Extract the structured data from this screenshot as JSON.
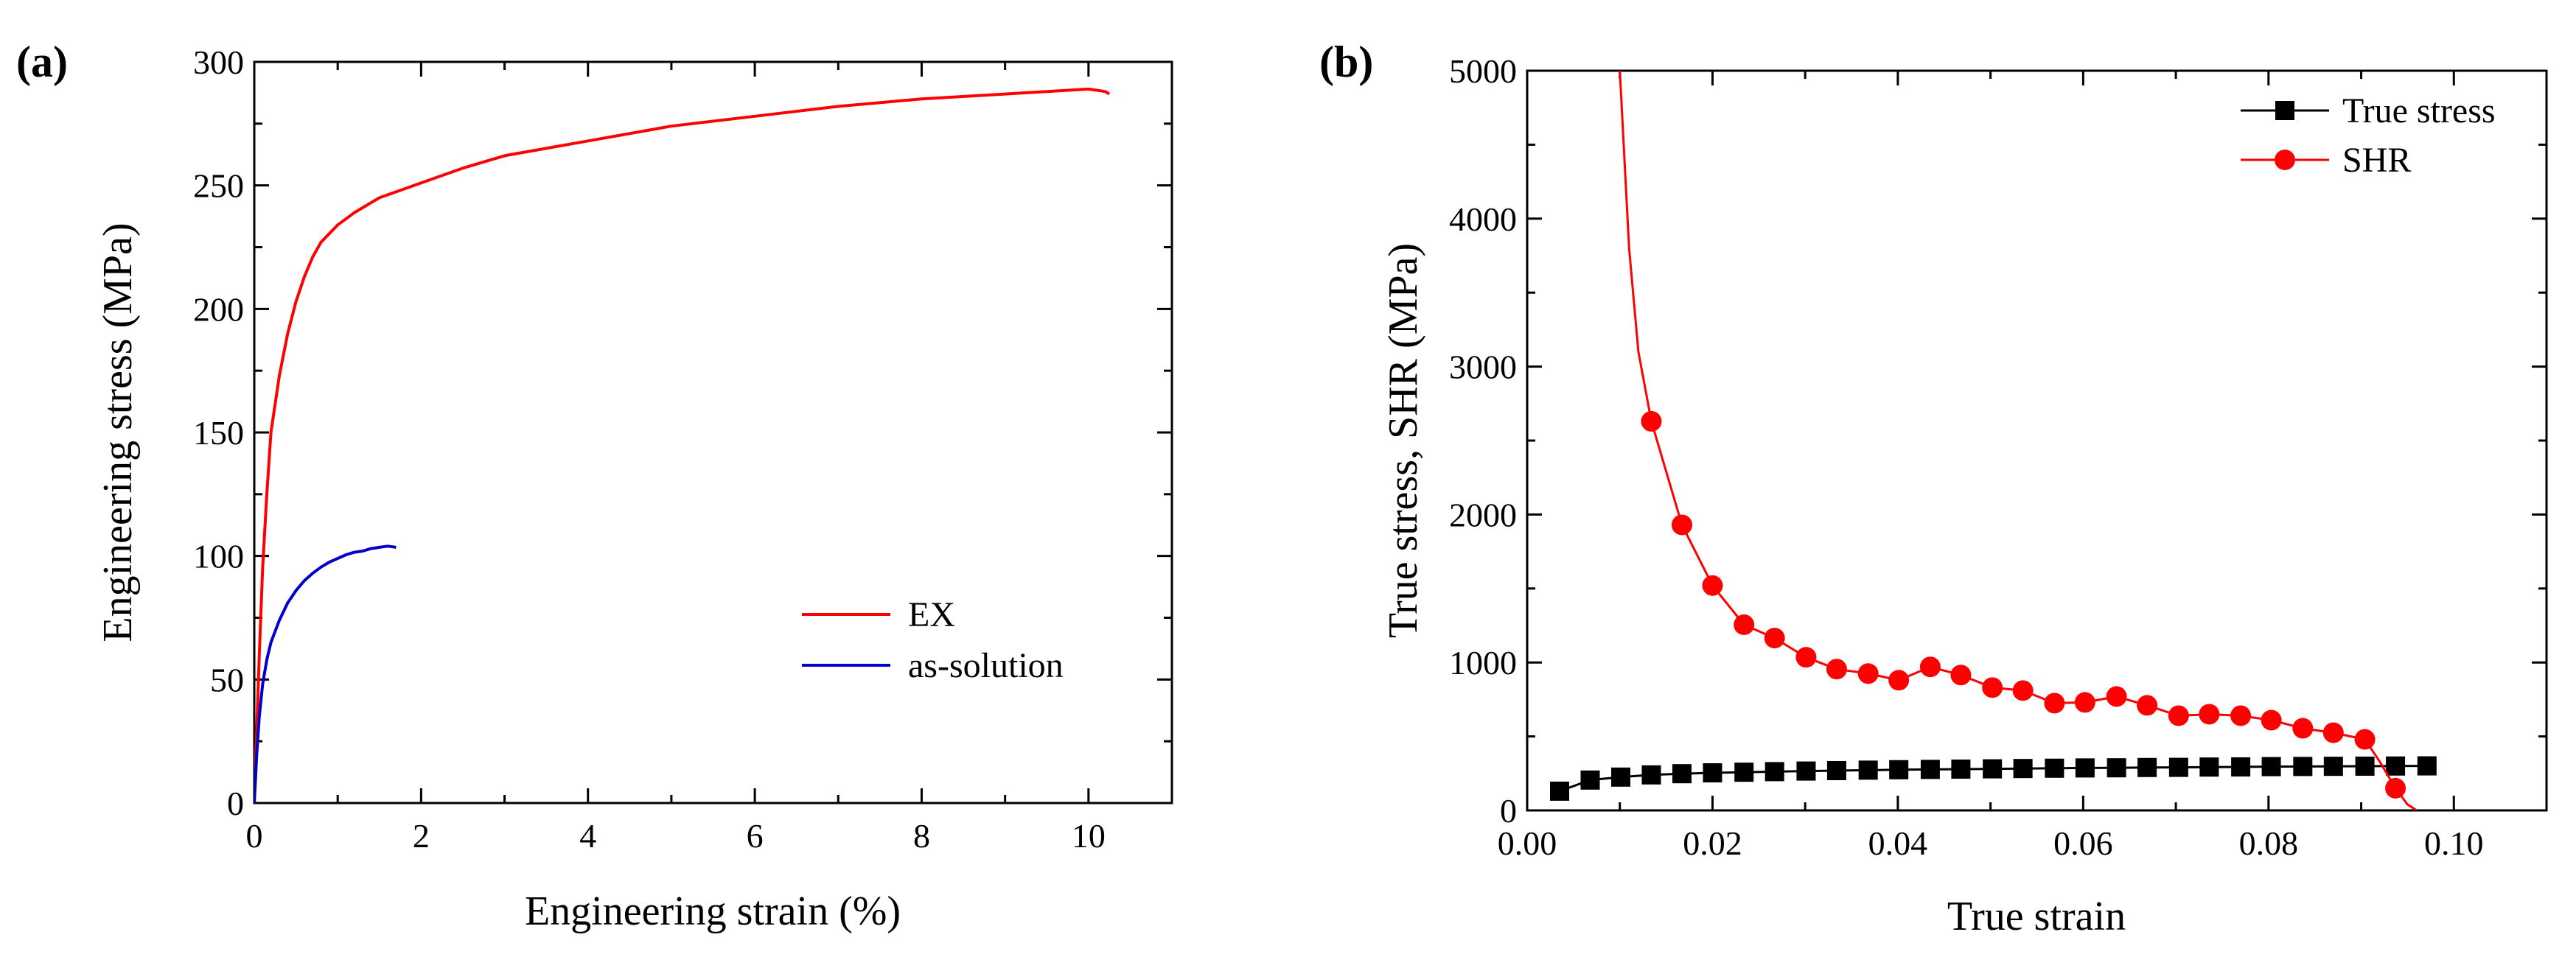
{
  "chart_data": [
    {
      "type": "line",
      "panel_label": "(a)",
      "xlabel": "Engineering strain (%)",
      "ylabel": "Engineering stress (MPa)",
      "xlim": [
        0,
        11
      ],
      "ylim": [
        0,
        300
      ],
      "xticks": [
        0,
        2,
        4,
        6,
        8,
        10
      ],
      "yticks": [
        0,
        50,
        100,
        150,
        200,
        250,
        300
      ],
      "grid": false,
      "legend": "lower-right",
      "series": [
        {
          "name": "EX",
          "color": "#ff0000",
          "x": [
            0,
            0.03,
            0.06,
            0.1,
            0.15,
            0.2,
            0.3,
            0.4,
            0.5,
            0.6,
            0.7,
            0.8,
            1.0,
            1.2,
            1.5,
            2.0,
            2.5,
            3.0,
            4.0,
            5.0,
            6.0,
            7.0,
            8.0,
            9.0,
            9.5,
            10.0,
            10.2,
            10.25
          ],
          "y": [
            0,
            30,
            60,
            95,
            125,
            150,
            173,
            190,
            203,
            213,
            221,
            227,
            234,
            239,
            245,
            251,
            257,
            262,
            268,
            274,
            278,
            282,
            285,
            287,
            288,
            289,
            288,
            287
          ]
        },
        {
          "name": "as-solution",
          "color": "#0000cc",
          "x": [
            0,
            0.03,
            0.06,
            0.1,
            0.15,
            0.2,
            0.3,
            0.4,
            0.5,
            0.6,
            0.7,
            0.8,
            0.9,
            1.0,
            1.1,
            1.2,
            1.3,
            1.4,
            1.5,
            1.6,
            1.7
          ],
          "y": [
            0,
            20,
            35,
            48,
            58,
            65,
            74,
            81,
            86,
            90,
            93,
            95.5,
            97.5,
            99,
            100.5,
            101.5,
            102,
            103,
            103.5,
            104,
            103.5
          ]
        }
      ]
    },
    {
      "type": "line",
      "panel_label": "(b)",
      "xlabel": "True strain",
      "ylabel": "True stress, SHR (MPa)",
      "xlim": [
        0,
        0.11
      ],
      "ylim": [
        0,
        5000
      ],
      "xticks": [
        "0.00",
        "0.02",
        "0.04",
        "0.06",
        "0.08",
        "0.10"
      ],
      "yticks": [
        0,
        1000,
        2000,
        3000,
        4000,
        5000
      ],
      "grid": false,
      "legend": "top-right",
      "series": [
        {
          "name": "True stress",
          "color": "#000000",
          "marker": "square",
          "x": [
            0.0035,
            0.0068,
            0.0101,
            0.0134,
            0.0167,
            0.02,
            0.0234,
            0.0267,
            0.0301,
            0.0334,
            0.0368,
            0.0401,
            0.0435,
            0.0468,
            0.0502,
            0.0535,
            0.0569,
            0.0602,
            0.0636,
            0.0669,
            0.0703,
            0.0736,
            0.077,
            0.0803,
            0.0837,
            0.087,
            0.0904,
            0.0937,
            0.0971
          ],
          "y": [
            130,
            205,
            225,
            240,
            248,
            254,
            258,
            262,
            266,
            269,
            272,
            275,
            277,
            279,
            281,
            283,
            285,
            287,
            288,
            290,
            291,
            293,
            294,
            296,
            297,
            298,
            299,
            300,
            301
          ]
        },
        {
          "name": "SHR",
          "color": "#ff0000",
          "marker": "circle",
          "x": [
            0.0134,
            0.0167,
            0.02,
            0.0234,
            0.0267,
            0.0301,
            0.0334,
            0.0368,
            0.0401,
            0.0435,
            0.0468,
            0.0502,
            0.0535,
            0.0569,
            0.0602,
            0.0636,
            0.0669,
            0.0703,
            0.0736,
            0.077,
            0.0803,
            0.0837,
            0.087,
            0.0904,
            0.0937
          ],
          "y": [
            2630,
            1930,
            1520,
            1255,
            1165,
            1035,
            955,
            925,
            880,
            970,
            915,
            830,
            810,
            725,
            730,
            770,
            710,
            640,
            650,
            640,
            610,
            555,
            525,
            480,
            150
          ],
          "curve_x": [
            0.01,
            0.0105,
            0.011,
            0.012,
            0.0134,
            0.0167,
            0.02,
            0.0234,
            0.0267,
            0.0301,
            0.0334,
            0.0368,
            0.0401,
            0.0435,
            0.0468,
            0.0502,
            0.0535,
            0.0569,
            0.0602,
            0.0636,
            0.0669,
            0.0703,
            0.0736,
            0.077,
            0.0803,
            0.0837,
            0.087,
            0.0904,
            0.092,
            0.0937,
            0.095,
            0.096
          ],
          "curve_y": [
            5000,
            4400,
            3800,
            3100,
            2630,
            1930,
            1520,
            1255,
            1165,
            1035,
            955,
            925,
            880,
            970,
            915,
            830,
            810,
            725,
            730,
            770,
            710,
            640,
            650,
            640,
            610,
            555,
            525,
            480,
            330,
            150,
            40,
            0
          ]
        }
      ]
    }
  ]
}
